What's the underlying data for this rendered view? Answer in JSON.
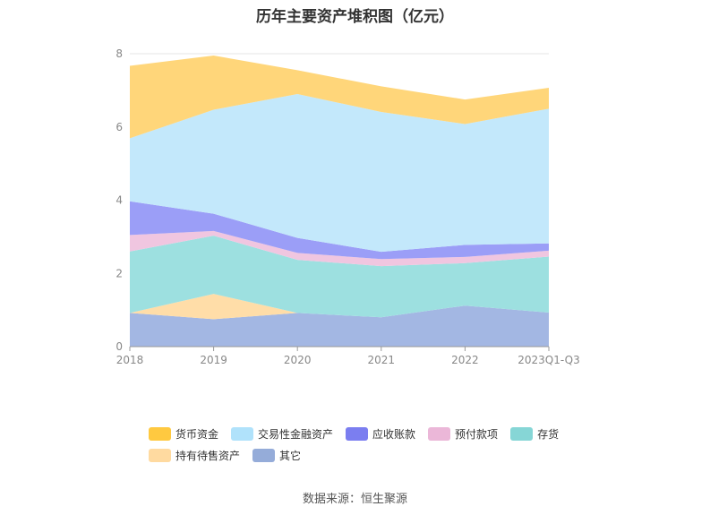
{
  "title": "历年主要资产堆积图（亿元）",
  "source": "数据来源：恒生聚源",
  "chart_data": {
    "type": "area",
    "stacked": true,
    "categories": [
      "2018",
      "2019",
      "2020",
      "2021",
      "2022",
      "2023Q1-Q3"
    ],
    "ylim": [
      0,
      8
    ],
    "yticks": [
      0,
      2,
      4,
      6,
      8
    ],
    "grid": true,
    "legend_position": "bottom",
    "series": [
      {
        "name": "其它",
        "color": "#a3b7e3",
        "values": [
          0.92,
          0.75,
          0.92,
          0.8,
          1.12,
          0.93
        ]
      },
      {
        "name": "持有待售资产",
        "color": "#ffdda8",
        "values": [
          0.0,
          0.69,
          0.0,
          0.0,
          0.0,
          0.0
        ]
      },
      {
        "name": "存货",
        "color": "#9de0e0",
        "values": [
          1.68,
          1.59,
          1.45,
          1.4,
          1.16,
          1.53
        ]
      },
      {
        "name": "预付款项",
        "color": "#f0c6e0",
        "values": [
          0.45,
          0.13,
          0.19,
          0.19,
          0.17,
          0.16
        ]
      },
      {
        "name": "应收账款",
        "color": "#9b9ef7",
        "values": [
          0.92,
          0.47,
          0.41,
          0.2,
          0.33,
          0.2
        ]
      },
      {
        "name": "交易性金融资产",
        "color": "#c3e8fb",
        "values": [
          1.72,
          2.84,
          3.93,
          3.82,
          3.3,
          3.68
        ]
      },
      {
        "name": "货币资金",
        "color": "#ffd67a",
        "values": [
          1.98,
          1.48,
          0.65,
          0.7,
          0.67,
          0.57
        ]
      }
    ]
  },
  "legend": {
    "row1": [
      {
        "label": "货币资金",
        "color": "#ffc940"
      },
      {
        "label": "交易性金融资产",
        "color": "#b0e2fb"
      },
      {
        "label": "应收账款",
        "color": "#7b7ef0"
      },
      {
        "label": "预付款项",
        "color": "#ebb7d8"
      },
      {
        "label": "存货",
        "color": "#86d6d6"
      }
    ],
    "row2": [
      {
        "label": "持有待售资产",
        "color": "#ffdaa0"
      },
      {
        "label": "其它",
        "color": "#95acd9"
      }
    ]
  }
}
